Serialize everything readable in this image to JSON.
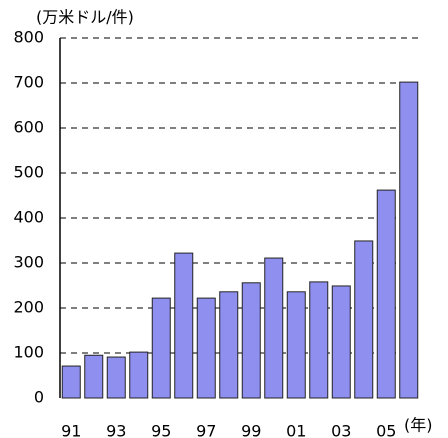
{
  "chart_data": {
    "type": "bar",
    "y_label": "(万米ドル/件)",
    "x_label": "(年)",
    "categories": [
      "91",
      null,
      "93",
      null,
      "95",
      null,
      "97",
      null,
      "99",
      null,
      "01",
      null,
      "03",
      null,
      "05",
      null
    ],
    "values": [
      71,
      95,
      91,
      102,
      222,
      322,
      222,
      236,
      256,
      311,
      236,
      258,
      249,
      349,
      462,
      702
    ],
    "color": "#8f8ff0",
    "ylim": [
      0,
      800
    ],
    "yticks": [
      0,
      100,
      200,
      300,
      400,
      500,
      600,
      700,
      800
    ],
    "grid": true
  }
}
